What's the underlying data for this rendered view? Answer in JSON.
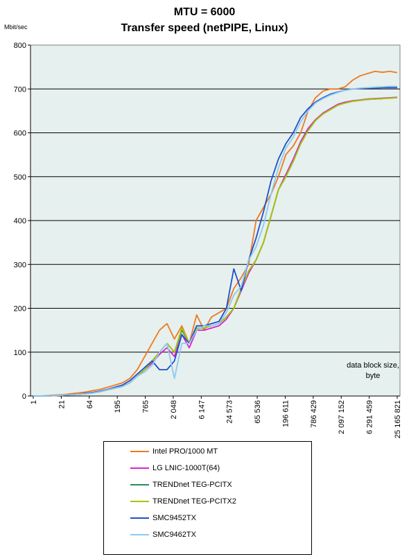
{
  "chart_data": {
    "type": "line",
    "title": "MTU = 6000",
    "subtitle": "Transfer speed (netPIPE, Linux)",
    "ylabel": "Mbit/sec",
    "xlabel": "data block size, byte",
    "ylim": [
      0,
      800
    ],
    "yticks": [
      "0",
      "100",
      "200",
      "300",
      "400",
      "500",
      "600",
      "700",
      "800"
    ],
    "xlabels": [
      "1",
      "21",
      "64",
      "195",
      "765",
      "2 048",
      "6 147",
      "24 573",
      "65 536",
      "196 611",
      "786 429",
      "2 097 152",
      "6 291 459",
      "25 165 821"
    ],
    "grid": true,
    "legend_position": "bottom",
    "series": [
      {
        "name": "Intel PRO/1000 MT",
        "color": "#F07820",
        "values": [
          0,
          0,
          1,
          2,
          3,
          5,
          7,
          9,
          12,
          15,
          20,
          25,
          30,
          40,
          60,
          90,
          120,
          150,
          165,
          130,
          160,
          120,
          185,
          150,
          180,
          190,
          200,
          245,
          270,
          300,
          400,
          430,
          460,
          500,
          550,
          570,
          600,
          650,
          680,
          695,
          700,
          700,
          705,
          720,
          730,
          735,
          740,
          738,
          740,
          737
        ]
      },
      {
        "name": "LG LNIC-1000T(64)",
        "color": "#E020D0",
        "values": [
          0,
          0,
          0,
          1,
          2,
          3,
          4,
          5,
          7,
          10,
          14,
          18,
          22,
          30,
          45,
          60,
          75,
          95,
          110,
          90,
          140,
          110,
          150,
          150,
          155,
          160,
          175,
          200,
          240,
          280,
          310,
          350,
          410,
          470,
          505,
          540,
          580,
          610,
          630,
          645,
          655,
          665,
          670,
          673,
          675,
          677,
          678,
          679,
          680,
          681
        ]
      },
      {
        "name": "TRENDnet TEG-PCITX",
        "color": "#2E8B57",
        "values": [
          0,
          0,
          0,
          1,
          2,
          3,
          4,
          5,
          7,
          10,
          14,
          18,
          22,
          30,
          45,
          60,
          80,
          100,
          120,
          100,
          150,
          120,
          155,
          155,
          160,
          165,
          180,
          200,
          245,
          285,
          310,
          350,
          410,
          470,
          500,
          535,
          575,
          605,
          628,
          643,
          653,
          663,
          668,
          672,
          674,
          676,
          677,
          678,
          679,
          680
        ]
      },
      {
        "name": "TRENDnet TEG-PCITX2",
        "color": "#A8C400",
        "values": [
          0,
          0,
          0,
          1,
          2,
          3,
          4,
          5,
          7,
          10,
          14,
          18,
          22,
          30,
          45,
          60,
          80,
          100,
          120,
          100,
          155,
          120,
          155,
          155,
          160,
          165,
          180,
          200,
          245,
          285,
          310,
          350,
          410,
          470,
          500,
          535,
          575,
          605,
          628,
          643,
          653,
          663,
          668,
          672,
          674,
          676,
          677,
          678,
          679,
          680
        ]
      },
      {
        "name": "SMC9452TX",
        "color": "#1E50C8",
        "values": [
          0,
          0,
          0,
          1,
          2,
          3,
          4,
          6,
          8,
          11,
          15,
          20,
          25,
          35,
          50,
          65,
          80,
          60,
          60,
          80,
          140,
          120,
          160,
          160,
          165,
          170,
          200,
          290,
          240,
          310,
          360,
          420,
          490,
          540,
          575,
          600,
          635,
          655,
          670,
          680,
          688,
          693,
          697,
          700,
          701,
          702,
          702,
          703,
          703,
          703
        ]
      },
      {
        "name": "SMC9462TX",
        "color": "#8EC8F0",
        "values": [
          0,
          0,
          0,
          1,
          2,
          3,
          4,
          5,
          7,
          10,
          14,
          18,
          22,
          30,
          45,
          55,
          70,
          100,
          120,
          40,
          120,
          120,
          150,
          160,
          160,
          165,
          190,
          230,
          250,
          310,
          340,
          390,
          460,
          520,
          565,
          590,
          625,
          650,
          668,
          678,
          686,
          692,
          697,
          700,
          702,
          703,
          704,
          705,
          706,
          706
        ]
      }
    ]
  }
}
